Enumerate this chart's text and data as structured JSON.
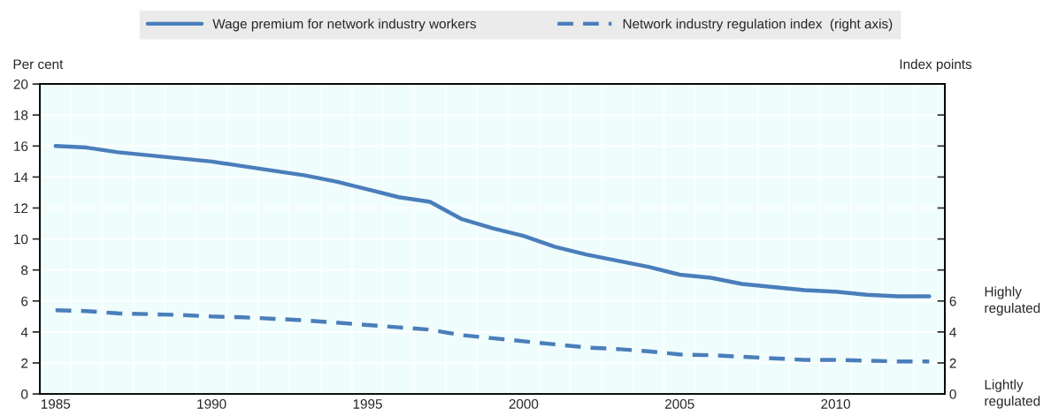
{
  "chart_data": {
    "type": "line",
    "ylabel": "Per cent",
    "y2label": "Index points",
    "categories": [
      "1985",
      null,
      null,
      null,
      null,
      "1990",
      null,
      null,
      null,
      null,
      "1995",
      null,
      null,
      null,
      null,
      "2000",
      null,
      null,
      null,
      null,
      "2005",
      null,
      null,
      null,
      null,
      "2010",
      null,
      null,
      null
    ],
    "series": [
      {
        "name": "Wage premium for network industry workers",
        "color": "#4a7ebb",
        "line_style": "solid",
        "values": [
          16.0,
          15.9,
          15.6,
          15.4,
          15.2,
          15.0,
          14.7,
          14.4,
          14.1,
          13.7,
          13.2,
          12.7,
          12.4,
          11.3,
          10.7,
          10.2,
          9.5,
          9.0,
          8.6,
          8.2,
          7.7,
          7.5,
          7.1,
          6.9,
          6.7,
          6.6,
          6.4,
          6.3,
          6.3
        ]
      },
      {
        "name": "Network industry regulation index  (right axis)",
        "color": "#4a7ebb",
        "line_style": "dashed",
        "axis": "y2",
        "values": [
          5.4,
          5.35,
          5.2,
          5.15,
          5.1,
          5.0,
          4.95,
          4.85,
          4.75,
          4.6,
          4.45,
          4.3,
          4.15,
          3.8,
          3.6,
          3.4,
          3.2,
          3.0,
          2.9,
          2.75,
          2.55,
          2.5,
          2.4,
          2.3,
          2.2,
          2.2,
          2.15,
          2.1,
          2.1
        ]
      }
    ],
    "ylim": [
      0,
      20
    ],
    "yticks": [
      0,
      2,
      4,
      6,
      8,
      10,
      12,
      14,
      16,
      18,
      20
    ],
    "y2lim": [
      0,
      20
    ],
    "y2ticks": [
      0,
      2,
      4,
      6,
      {
        "value": 8,
        "label": null
      },
      {
        "value": 10,
        "label": null
      },
      {
        "value": 12,
        "label": null
      },
      {
        "value": 14,
        "label": null
      },
      {
        "value": 16,
        "label": null
      },
      {
        "value": 18,
        "label": null
      },
      {
        "value": 20,
        "label": null
      }
    ],
    "annotations": [
      "Highly\nregulated",
      "Lightly\nregulated"
    ],
    "grid": true,
    "legend": "top",
    "marker": "none"
  }
}
